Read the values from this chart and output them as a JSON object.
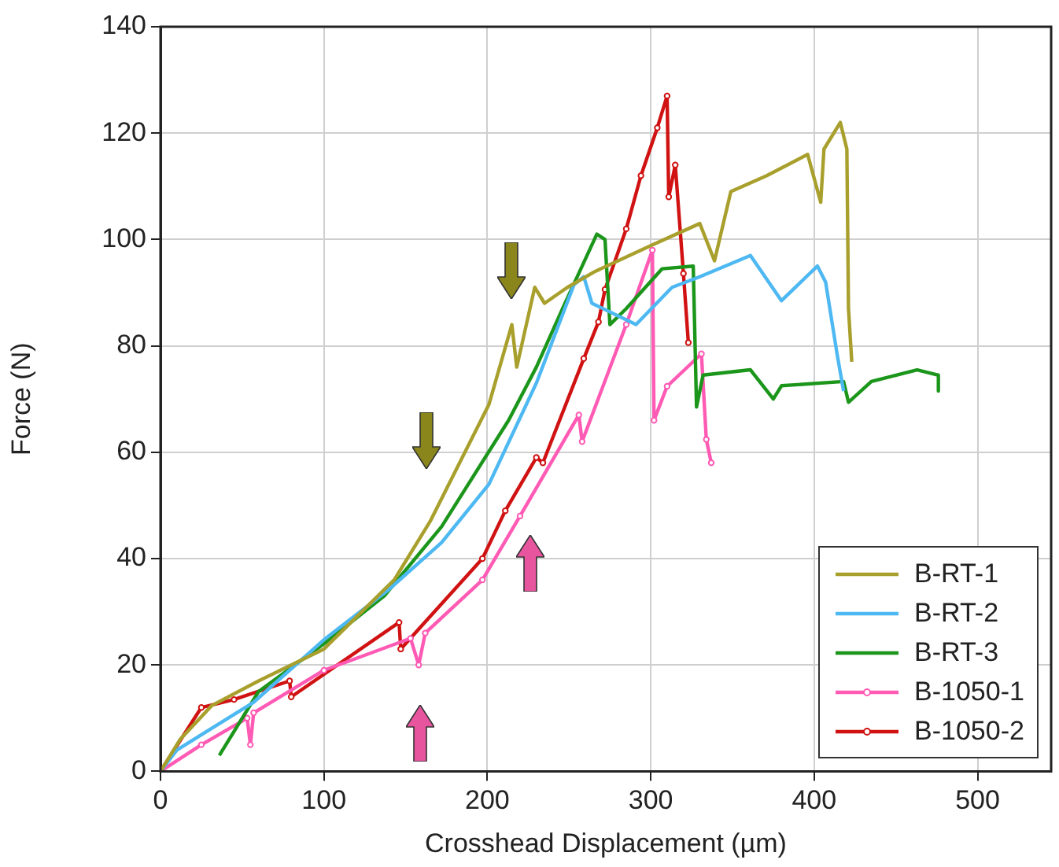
{
  "chart_data": {
    "type": "line",
    "xlabel": "Crosshead Displacement (µm)",
    "ylabel": "Force (N)",
    "xlim": [
      0,
      545
    ],
    "xticks": [
      0,
      100,
      200,
      300,
      400,
      500
    ],
    "ylim": [
      0,
      140
    ],
    "yticks": [
      0,
      20,
      40,
      60,
      80,
      100,
      120,
      140
    ],
    "grid": true,
    "legend": "bottom right",
    "marker": "none",
    "line_style": "solid",
    "series": [
      {
        "name": "B-RT-1",
        "color": "#a89f2c",
        "x": [
          0,
          12,
          31.5,
          60,
          100,
          143,
          165,
          201,
          215,
          218,
          229,
          235,
          249,
          266,
          301,
          330,
          339,
          349,
          371,
          396,
          404,
          406,
          416,
          420,
          421,
          423
        ],
        "values": [
          0,
          6,
          12.4,
          17,
          23,
          36,
          47,
          69,
          84,
          76,
          91,
          88,
          91,
          94,
          99,
          103,
          96,
          109,
          112,
          116,
          107,
          117,
          122,
          117,
          87,
          77
        ]
      },
      {
        "name": "B-RT-2",
        "color": "#4db8f2",
        "x": [
          0,
          10,
          57,
          101,
          139,
          172,
          201,
          230,
          253,
          259,
          264,
          291,
          313,
          330,
          361,
          380,
          402,
          407,
          414,
          418
        ],
        "values": [
          0,
          4,
          13,
          25,
          34,
          43,
          54,
          73,
          91.5,
          93,
          88,
          84,
          91,
          93,
          97,
          88.5,
          95,
          92,
          78.5,
          71.5
        ]
      },
      {
        "name": "B-RT-3",
        "color": "#1b961b",
        "x": [
          36,
          60,
          100,
          137,
          172,
          213,
          230,
          246,
          267,
          272,
          275,
          285,
          307,
          326,
          328,
          332,
          361,
          375,
          380,
          418,
          421,
          435,
          463,
          476,
          476
        ],
        "values": [
          3,
          15,
          24,
          33,
          46,
          66,
          76,
          87,
          101,
          100,
          84,
          87,
          94.5,
          95,
          68.5,
          74.5,
          75.5,
          70,
          72.5,
          73.3,
          69.4,
          73.3,
          75.5,
          74.5,
          71.5
        ]
      },
      {
        "name": "B-1050-1",
        "color": "#ff5ab4",
        "marker": "circle",
        "x": [
          0,
          25,
          53,
          55,
          57,
          100,
          153,
          158,
          162,
          197,
          220,
          256,
          258,
          285,
          301,
          302,
          310,
          331,
          334,
          337
        ],
        "values": [
          0,
          5,
          10,
          5,
          11,
          19,
          25,
          20,
          26,
          36,
          48,
          67,
          62,
          84,
          98,
          66,
          72.4,
          78.5,
          62.4,
          58
        ]
      },
      {
        "name": "B-1050-2",
        "color": "#d01212",
        "marker": "circle",
        "x": [
          0,
          25,
          45,
          79,
          80,
          146,
          147,
          197,
          211,
          230,
          234,
          259,
          268,
          272,
          285,
          294,
          304,
          310,
          311,
          315,
          320,
          323
        ],
        "values": [
          0,
          12,
          13.5,
          17,
          14,
          28,
          23,
          40,
          49,
          59,
          58,
          77.6,
          84.5,
          90.6,
          102,
          112,
          121,
          127,
          108,
          114,
          93.6,
          80.6
        ]
      }
    ]
  }
}
